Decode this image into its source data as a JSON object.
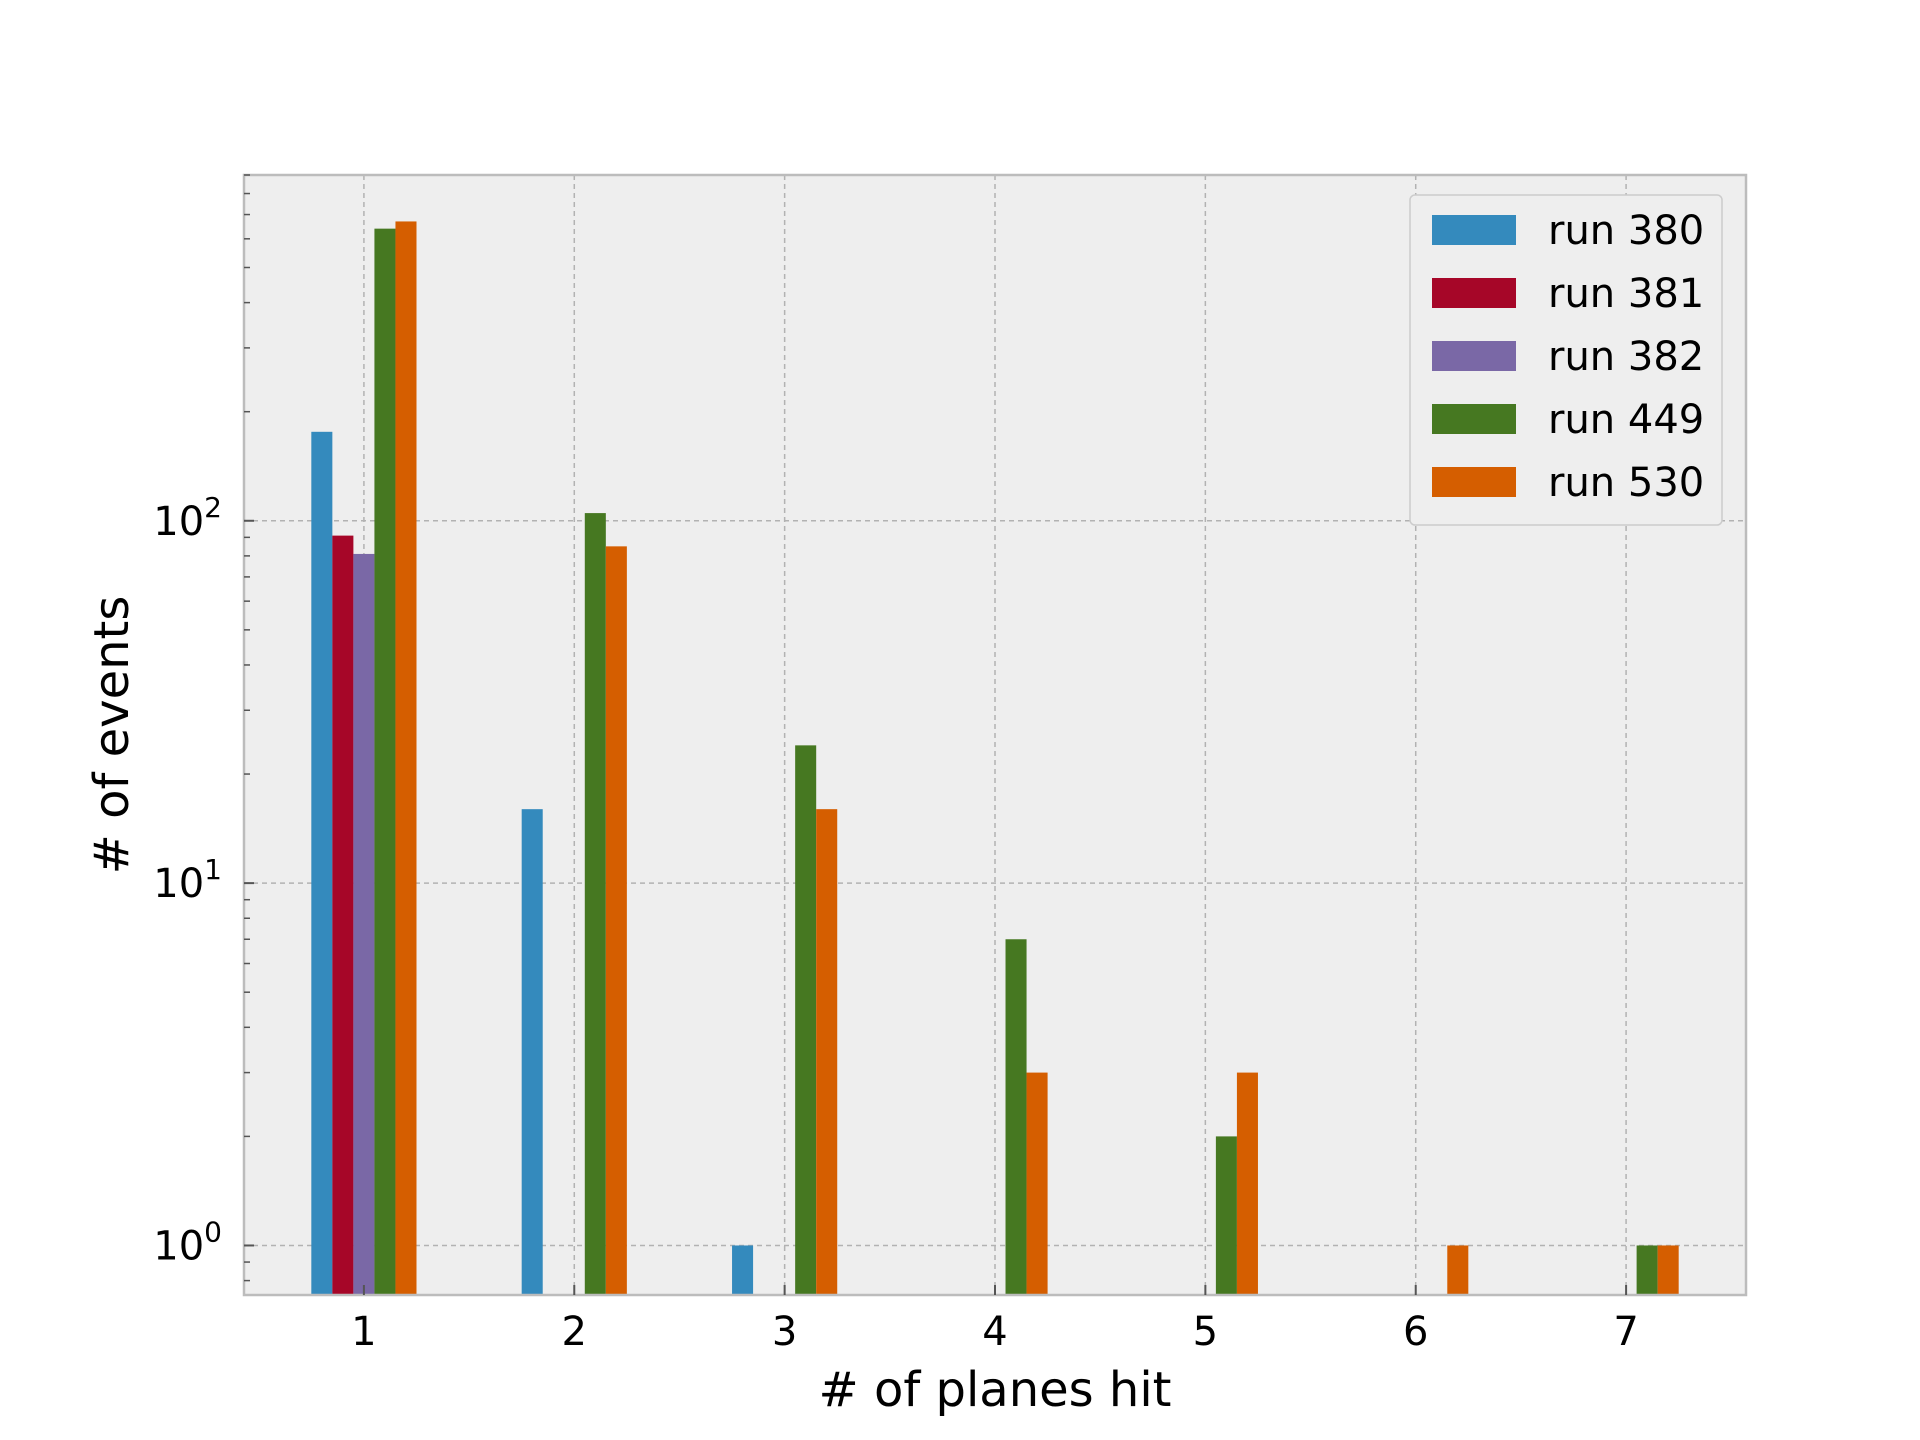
{
  "chart_data": {
    "type": "bar",
    "title": "",
    "xlabel": "# of planes hit",
    "ylabel": "# of events",
    "yscale": "log",
    "ylim": [
      0.73,
      900
    ],
    "xlim": [
      0.43,
      7.57
    ],
    "grid": true,
    "legend_position": "top-right",
    "categories": [
      "1",
      "2",
      "3",
      "4",
      "5",
      "6",
      "7"
    ],
    "x": [
      1,
      2,
      3,
      4,
      5,
      6,
      7
    ],
    "y_ticks": [
      {
        "value": 1,
        "base": "10",
        "exp": "0"
      },
      {
        "value": 10,
        "base": "10",
        "exp": "1"
      },
      {
        "value": 100,
        "base": "10",
        "exp": "2"
      }
    ],
    "series": [
      {
        "name": "run 380",
        "color": "#348abd",
        "values": [
          176,
          16,
          1,
          0,
          0,
          0,
          0
        ]
      },
      {
        "name": "run 381",
        "color": "#a60628",
        "values": [
          91,
          0,
          0,
          0,
          0,
          0,
          0
        ]
      },
      {
        "name": "run 382",
        "color": "#7a68a6",
        "values": [
          81,
          0,
          0,
          0,
          0,
          0,
          0
        ]
      },
      {
        "name": "run 449",
        "color": "#467821",
        "values": [
          640,
          105,
          24,
          7,
          2,
          0,
          1
        ]
      },
      {
        "name": "run 530",
        "color": "#d55e00",
        "values": [
          670,
          85,
          16,
          3,
          3,
          1,
          1
        ]
      }
    ]
  },
  "colors": {
    "plot_background": "#eeeeee",
    "grid": "#b2b2b2",
    "frame": "#bcbcbc"
  }
}
